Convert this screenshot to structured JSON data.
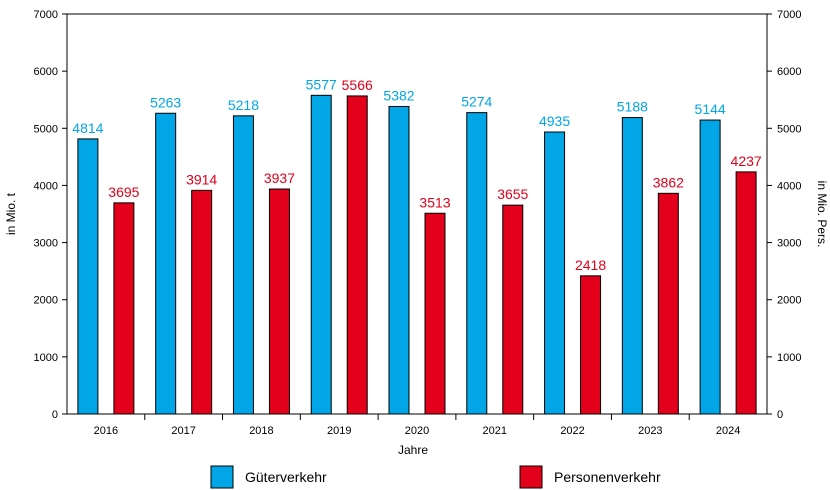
{
  "chart_data": {
    "type": "bar",
    "categories": [
      "2016",
      "2017",
      "2018",
      "2019",
      "2020",
      "2021",
      "2022",
      "2023",
      "2024"
    ],
    "series": [
      {
        "name": "Güterverkehr",
        "axis": "left",
        "color": "#00a6e6",
        "label_color": "#00a6e6",
        "values": [
          4814,
          5263,
          5218,
          5577,
          5382,
          5274,
          4935,
          5188,
          5144
        ]
      },
      {
        "name": "Personenverkehr",
        "axis": "right",
        "color": "#e2001a",
        "label_color": "#e2001a",
        "values": [
          3695,
          3914,
          3937,
          5566,
          3513,
          3655,
          2418,
          3862,
          4237
        ]
      }
    ],
    "xlabel": "Jahre",
    "ylabel": "in Mio. t",
    "y2label": "in Mio. Pers.",
    "ylim": [
      0,
      7000
    ],
    "y2lim": [
      0,
      7000
    ],
    "yticks": [
      0,
      1000,
      2000,
      3000,
      4000,
      5000,
      6000,
      7000
    ],
    "grid": false,
    "legend_position": "bottom"
  }
}
